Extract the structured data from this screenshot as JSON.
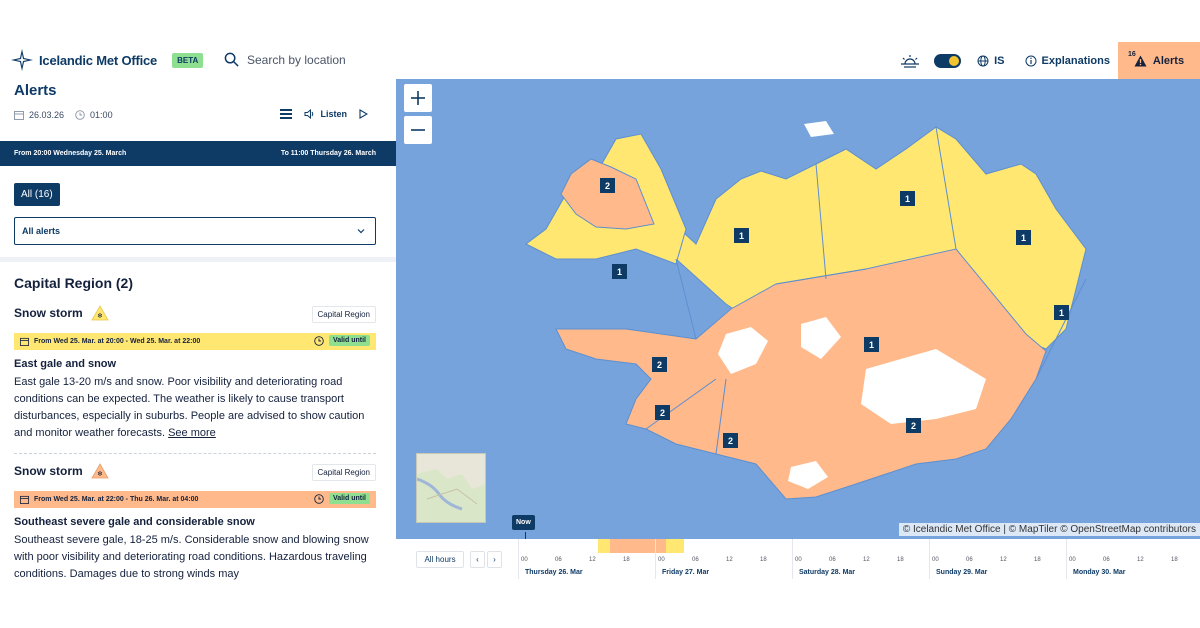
{
  "header": {
    "brand": "Icelandic Met Office",
    "beta": "BETA",
    "search_placeholder": "Search by location",
    "language": "IS",
    "explanations": "Explanations",
    "alerts_label": "Alerts",
    "alerts_count": "16"
  },
  "panel": {
    "title": "Alerts",
    "date": "26.03.26",
    "time": "01:00",
    "listen": "Listen",
    "range_from": "From 20:00 Wednesday 25. March",
    "range_to": "To 11:00 Thursday 26. March",
    "tab_all": "All (16)",
    "select_value": "All alerts",
    "region_title": "Capital Region (2)",
    "alerts": [
      {
        "title": "Snow storm",
        "region": "Capital Region",
        "validity": "From Wed 25. Mar. at 20:00 - Wed 25. Mar. at 22:00",
        "valid_until": "Valid until",
        "level": "yellow",
        "subtitle": "East gale and snow",
        "text": "East gale 13-20 m/s and snow. Poor visibility and deteriorating road conditions can be expected. The weather is likely to cause transport disturbances, especially in suburbs. People are advised to show caution and monitor weather forecasts.",
        "link": "See more"
      },
      {
        "title": "Snow storm",
        "region": "Capital Region",
        "validity": "From Wed 25. Mar. at 22:00 - Thu 26. Mar. at 04:00",
        "valid_until": "Valid until",
        "level": "orange",
        "subtitle": "Southeast severe gale and considerable snow",
        "text": "Southeast severe gale, 18-25 m/s. Considerable snow and blowing snow with poor visibility and deteriorating road conditions. Hazardous traveling conditions. Damages due to strong winds may"
      }
    ]
  },
  "map": {
    "attribution": "© Icelandic Met Office | © MapTiler © OpenStreetMap contributors",
    "markers": [
      "2",
      "1",
      "1",
      "1",
      "1",
      "1",
      "1",
      "2",
      "2",
      "2",
      "2"
    ],
    "colors": {
      "sea": "#76a3dc",
      "yellow": "#ffe772",
      "orange": "#ffb98a",
      "ice": "#ffffff",
      "marker": "#0e3a66"
    }
  },
  "timeline": {
    "all_hours": "All hours",
    "prev": "‹",
    "next": "›",
    "now": "Now",
    "hour_ticks": [
      "00",
      "06",
      "12",
      "18"
    ],
    "days": [
      "Thursday 26. Mar",
      "Friday 27. Mar",
      "Saturday 28. Mar",
      "Sunday 29. Mar",
      "Monday 30. Mar"
    ]
  }
}
